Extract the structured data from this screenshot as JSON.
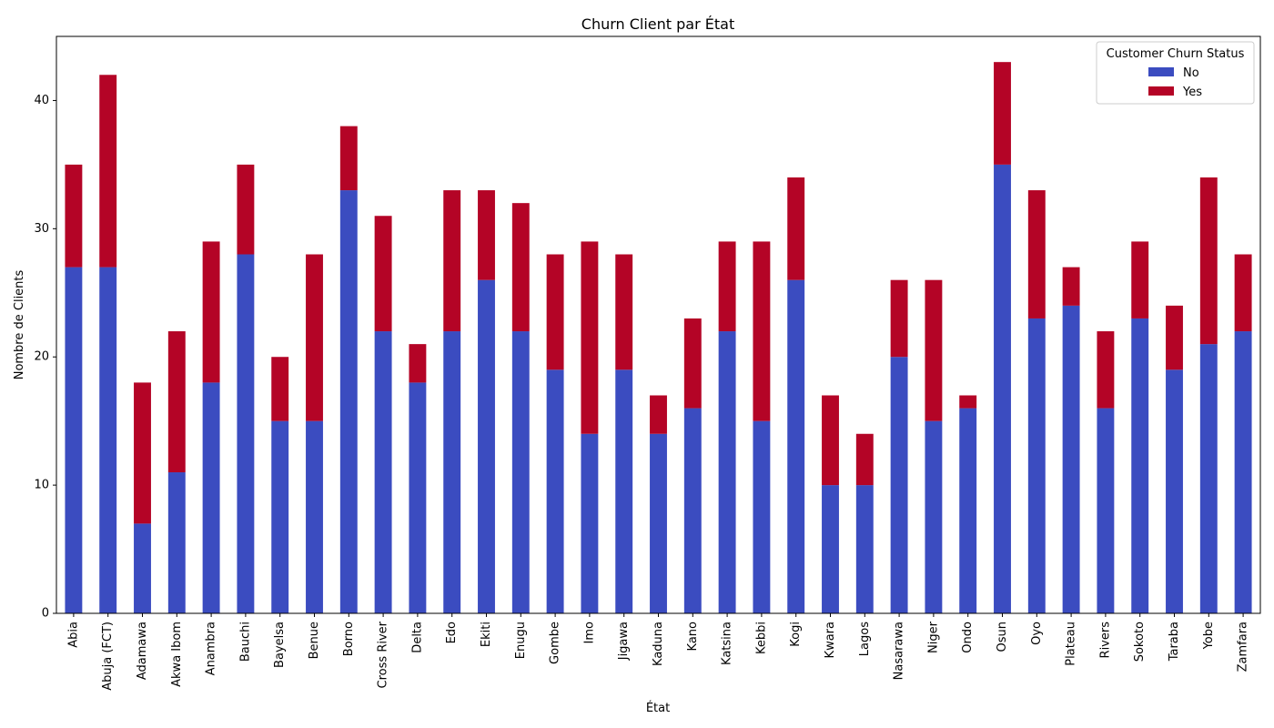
{
  "chart_data": {
    "type": "bar",
    "stacked": true,
    "title": "Churn Client par État",
    "xlabel": "État",
    "ylabel": "Nombre de Clients",
    "ylim": [
      0,
      45
    ],
    "yticks": [
      0,
      10,
      20,
      30,
      40
    ],
    "categories": [
      "Abia",
      "Abuja (FCT)",
      "Adamawa",
      "Akwa Ibom",
      "Anambra",
      "Bauchi",
      "Bayelsa",
      "Benue",
      "Borno",
      "Cross River",
      "Delta",
      "Edo",
      "Ekiti",
      "Enugu",
      "Gombe",
      "Imo",
      "Jigawa",
      "Kaduna",
      "Kano",
      "Katsina",
      "Kebbi",
      "Kogi",
      "Kwara",
      "Lagos",
      "Nasarawa",
      "Niger",
      "Ondo",
      "Osun",
      "Oyo",
      "Plateau",
      "Rivers",
      "Sokoto",
      "Taraba",
      "Yobe",
      "Zamfara"
    ],
    "series": [
      {
        "name": "No",
        "color": "#3b4cc0",
        "values": [
          27,
          27,
          7,
          11,
          18,
          28,
          15,
          15,
          33,
          22,
          18,
          22,
          26,
          22,
          19,
          14,
          19,
          14,
          16,
          22,
          15,
          26,
          10,
          10,
          20,
          15,
          16,
          35,
          23,
          24,
          16,
          23,
          19,
          21,
          22
        ]
      },
      {
        "name": "Yes",
        "color": "#b40426",
        "values": [
          8,
          15,
          11,
          11,
          11,
          7,
          5,
          13,
          5,
          9,
          3,
          11,
          7,
          10,
          9,
          15,
          9,
          3,
          7,
          7,
          14,
          8,
          7,
          4,
          6,
          11,
          1,
          8,
          10,
          3,
          6,
          6,
          5,
          13,
          6
        ]
      }
    ],
    "legend": {
      "title": "Customer Churn Status",
      "position": "top-right"
    },
    "grid": false
  }
}
